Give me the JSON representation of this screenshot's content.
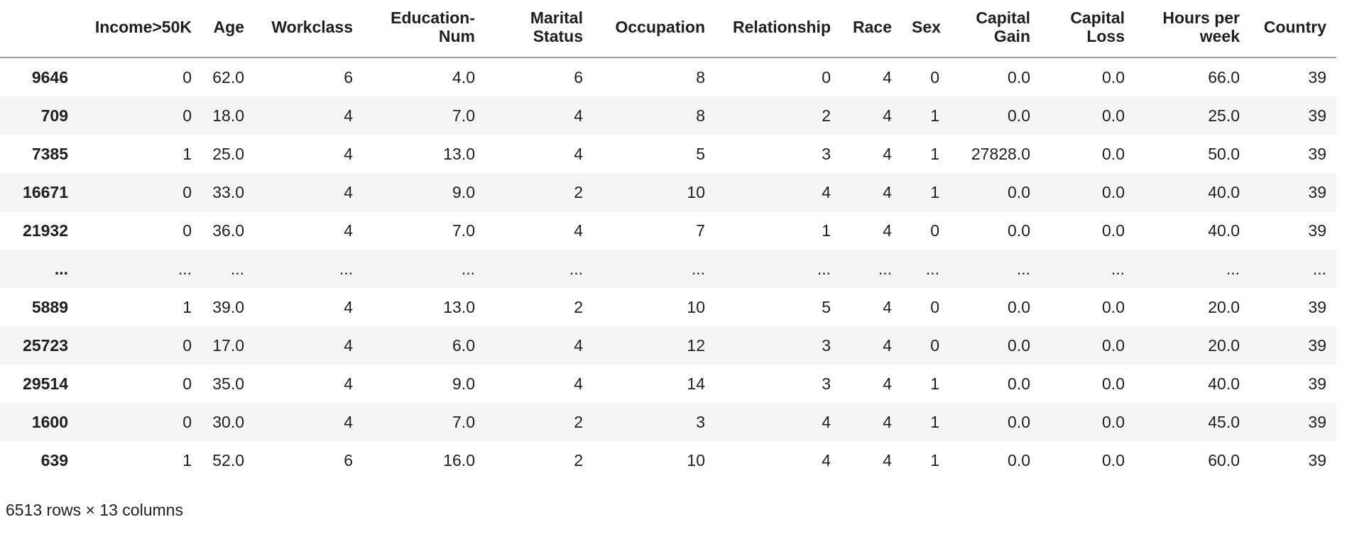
{
  "table": {
    "index_header": "",
    "columns": [
      "Income>50K",
      "Age",
      "Workclass",
      "Education-Num",
      "Marital Status",
      "Occupation",
      "Relationship",
      "Race",
      "Sex",
      "Capital Gain",
      "Capital Loss",
      "Hours per week",
      "Country"
    ],
    "rows": [
      {
        "index": "9646",
        "cells": [
          "0",
          "62.0",
          "6",
          "4.0",
          "6",
          "8",
          "0",
          "4",
          "0",
          "0.0",
          "0.0",
          "66.0",
          "39"
        ]
      },
      {
        "index": "709",
        "cells": [
          "0",
          "18.0",
          "4",
          "7.0",
          "4",
          "8",
          "2",
          "4",
          "1",
          "0.0",
          "0.0",
          "25.0",
          "39"
        ]
      },
      {
        "index": "7385",
        "cells": [
          "1",
          "25.0",
          "4",
          "13.0",
          "4",
          "5",
          "3",
          "4",
          "1",
          "27828.0",
          "0.0",
          "50.0",
          "39"
        ]
      },
      {
        "index": "16671",
        "cells": [
          "0",
          "33.0",
          "4",
          "9.0",
          "2",
          "10",
          "4",
          "4",
          "1",
          "0.0",
          "0.0",
          "40.0",
          "39"
        ]
      },
      {
        "index": "21932",
        "cells": [
          "0",
          "36.0",
          "4",
          "7.0",
          "4",
          "7",
          "1",
          "4",
          "0",
          "0.0",
          "0.0",
          "40.0",
          "39"
        ]
      },
      {
        "index": "...",
        "cells": [
          "...",
          "...",
          "...",
          "...",
          "...",
          "...",
          "...",
          "...",
          "...",
          "...",
          "...",
          "...",
          "..."
        ]
      },
      {
        "index": "5889",
        "cells": [
          "1",
          "39.0",
          "4",
          "13.0",
          "2",
          "10",
          "5",
          "4",
          "0",
          "0.0",
          "0.0",
          "20.0",
          "39"
        ]
      },
      {
        "index": "25723",
        "cells": [
          "0",
          "17.0",
          "4",
          "6.0",
          "4",
          "12",
          "3",
          "4",
          "0",
          "0.0",
          "0.0",
          "20.0",
          "39"
        ]
      },
      {
        "index": "29514",
        "cells": [
          "0",
          "35.0",
          "4",
          "9.0",
          "4",
          "14",
          "3",
          "4",
          "1",
          "0.0",
          "0.0",
          "40.0",
          "39"
        ]
      },
      {
        "index": "1600",
        "cells": [
          "0",
          "30.0",
          "4",
          "7.0",
          "2",
          "3",
          "4",
          "4",
          "1",
          "0.0",
          "0.0",
          "45.0",
          "39"
        ]
      },
      {
        "index": "639",
        "cells": [
          "1",
          "52.0",
          "6",
          "16.0",
          "2",
          "10",
          "4",
          "4",
          "1",
          "0.0",
          "0.0",
          "60.0",
          "39"
        ]
      }
    ]
  },
  "footer": {
    "summary": "6513 rows × 13 columns"
  },
  "colors": {
    "stripe": "#f5f5f5",
    "header_border": "#a0a0a0",
    "text": "#1f1f1f",
    "background": "#ffffff"
  }
}
